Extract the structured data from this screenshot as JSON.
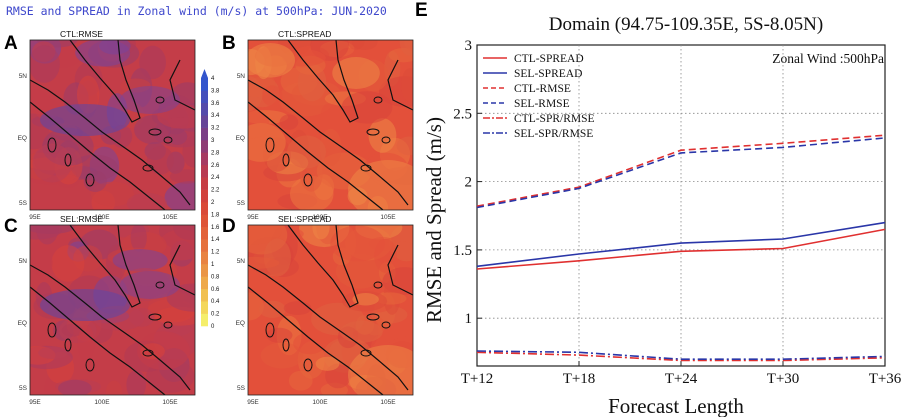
{
  "left_figure": {
    "title": "RMSE and SPREAD in Zonal wind (m/s) at 500hPa: JUN-2020",
    "panels": [
      {
        "letter": "A",
        "subtitle": "CTL:RMSE",
        "style": "rmse"
      },
      {
        "letter": "B",
        "subtitle": "CTL:SPREAD",
        "style": "spread"
      },
      {
        "letter": "C",
        "subtitle": "SEL:RMSE",
        "style": "rmse"
      },
      {
        "letter": "D",
        "subtitle": "SEL:SPREAD",
        "style": "spread"
      }
    ],
    "lat_ticks": [
      "5N",
      "EQ",
      "5S"
    ],
    "lon_ticks": [
      "95E",
      "100E",
      "105E"
    ],
    "colorbar": {
      "levels": [
        "0",
        "0.2",
        "0.4",
        "0.6",
        "0.8",
        "1",
        "1.2",
        "1.4",
        "1.6",
        "1.8",
        "2",
        "2.2",
        "2.4",
        "2.6",
        "2.8",
        "3",
        "3.2",
        "3.4",
        "3.6",
        "3.8",
        "4"
      ],
      "colors": [
        "#f5ee6a",
        "#f4d75a",
        "#f1c050",
        "#eea94a",
        "#ea9546",
        "#e88342",
        "#e5723e",
        "#e2623a",
        "#de5437",
        "#d94a38",
        "#d1423c",
        "#c63d45",
        "#b83a52",
        "#a63a62",
        "#8f3c74",
        "#7a3f86",
        "#664598",
        "#544aaa",
        "#444fbc",
        "#3355cc"
      ]
    },
    "palette": {
      "rmse": [
        "#c43d48",
        "#b13a56",
        "#b93e53",
        "#9a3d6a",
        "#d7413c",
        "#7a449a",
        "#a93b5f",
        "#ca3f42"
      ],
      "spread": [
        "#e3503a",
        "#e8663c",
        "#dd4a39",
        "#ec7640",
        "#e45a3b",
        "#d8433a",
        "#ef8746",
        "#e06040"
      ]
    }
  },
  "right_figure": {
    "letter": "E",
    "title": "Domain (94.75-109.35E, 5S-8.05N)",
    "annotation": "Zonal Wind :500hPa"
  },
  "chart_data": {
    "type": "line",
    "title": "Domain (94.75-109.35E, 5S-8.05N)",
    "xlabel": "Forecast Length",
    "ylabel": "RMSE and Spread (m/s)",
    "categories": [
      "T+12",
      "T+18",
      "T+24",
      "T+30",
      "T+36"
    ],
    "ylim": [
      0.65,
      3
    ],
    "yticks": [
      1,
      1.5,
      2,
      2.5,
      3
    ],
    "legend_position": "top-left",
    "series": [
      {
        "name": "CTL-SPREAD",
        "color": "#e03030",
        "dash": "solid",
        "values": [
          1.36,
          1.42,
          1.49,
          1.51,
          1.65
        ]
      },
      {
        "name": "SEL-SPREAD",
        "color": "#2a36a8",
        "dash": "solid",
        "values": [
          1.38,
          1.47,
          1.55,
          1.58,
          1.7
        ]
      },
      {
        "name": "CTL-RMSE",
        "color": "#e03030",
        "dash": "dashed",
        "values": [
          1.82,
          1.96,
          2.23,
          2.28,
          2.34
        ]
      },
      {
        "name": "SEL-RMSE",
        "color": "#2a36a8",
        "dash": "dashed",
        "values": [
          1.81,
          1.95,
          2.21,
          2.25,
          2.32
        ]
      },
      {
        "name": "CTL-SPR/RMSE",
        "color": "#e03030",
        "dash": "dashdot",
        "values": [
          0.75,
          0.73,
          0.69,
          0.69,
          0.71
        ]
      },
      {
        "name": "SEL-SPR/RMSE",
        "color": "#2a36a8",
        "dash": "dashdot",
        "values": [
          0.76,
          0.75,
          0.7,
          0.7,
          0.72
        ]
      }
    ]
  }
}
